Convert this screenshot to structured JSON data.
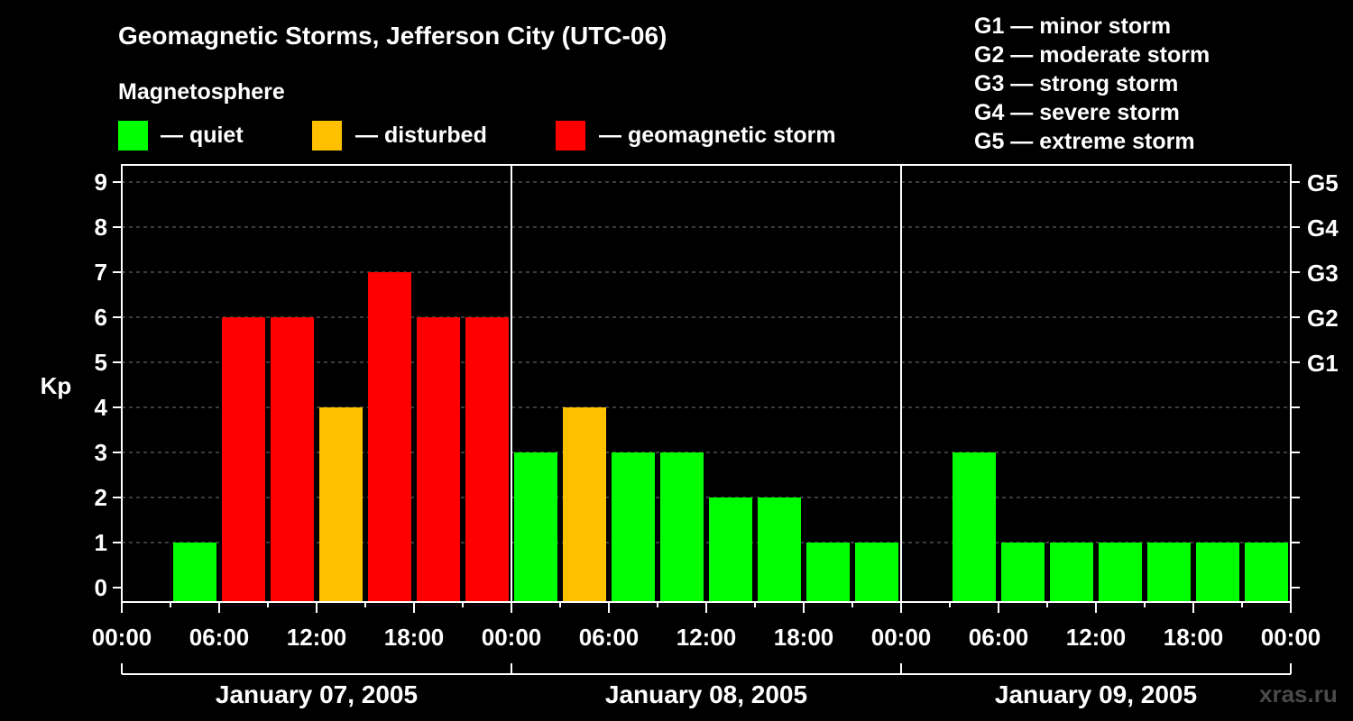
{
  "chart_data": {
    "type": "bar",
    "title": "Geomagnetic Storms, Jefferson City (UTC-06)",
    "subtitle": "Magnetosphere",
    "ylabel": "Kp",
    "ylim": [
      0,
      9
    ],
    "y_ticks": [
      "0",
      "1",
      "2",
      "3",
      "4",
      "5",
      "6",
      "7",
      "8",
      "9"
    ],
    "right_ticks": [
      {
        "kp": 5,
        "label": "G1"
      },
      {
        "kp": 6,
        "label": "G2"
      },
      {
        "kp": 7,
        "label": "G3"
      },
      {
        "kp": 8,
        "label": "G4"
      },
      {
        "kp": 9,
        "label": "G5"
      }
    ],
    "x_tick_labels": [
      "00:00",
      "06:00",
      "12:00",
      "18:00",
      "00:00",
      "06:00",
      "12:00",
      "18:00",
      "00:00",
      "06:00",
      "12:00",
      "18:00",
      "00:00"
    ],
    "days": [
      "January 07, 2005",
      "January 08, 2005",
      "January 09, 2005"
    ],
    "values": [
      null,
      1,
      6,
      6,
      4,
      7,
      6,
      6,
      3,
      4,
      3,
      3,
      2,
      2,
      1,
      1,
      null,
      3,
      1,
      1,
      1,
      1,
      1,
      1
    ],
    "magnetosphere_legend": [
      {
        "label": "— quiet",
        "color": "#00ff00"
      },
      {
        "label": "— disturbed",
        "color": "#ffc000"
      },
      {
        "label": "— geomagnetic storm",
        "color": "#ff0000"
      }
    ],
    "storm_scale": [
      "G1 — minor storm",
      "G2 — moderate storm",
      "G3 — strong storm",
      "G4 — severe storm",
      "G5 — extreme storm"
    ],
    "grid": true
  },
  "watermark": "xras.ru"
}
